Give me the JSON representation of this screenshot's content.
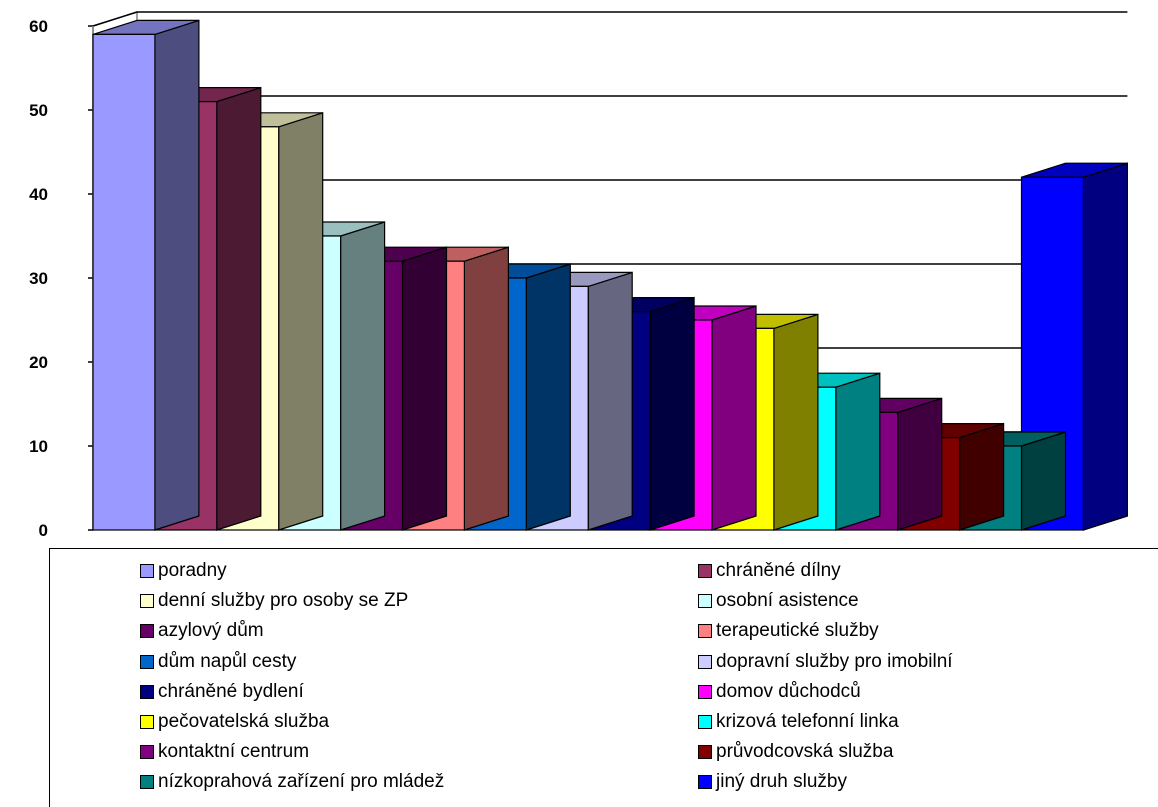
{
  "chart_data": {
    "type": "bar",
    "title": "",
    "xlabel": "",
    "ylabel": "",
    "ylim": [
      0,
      60
    ],
    "yticks": [
      "0",
      "10",
      "20",
      "30",
      "40",
      "50",
      "60"
    ],
    "grid": true,
    "legend_position": "bottom",
    "three_d": true,
    "categories": [
      "poradny",
      "chráněné dílny",
      "denní služby pro osoby se ZP",
      "osobní asistence",
      "azylový dům",
      "terapeutické služby",
      "dům napůl cesty",
      "dopravní služby pro imobilní",
      "chráněné bydlení",
      "domov důchodců",
      "pečovatelská služba",
      "krizová telefonní linka",
      "kontaktní centrum",
      "průvodcovská služba",
      "nízkoprahová zařízení pro mládež",
      "jiný druh služby"
    ],
    "values": [
      59,
      51,
      48,
      35,
      32,
      32,
      30,
      29,
      26,
      25,
      24,
      17,
      14,
      11,
      10,
      42
    ],
    "colors": [
      "#9999ff",
      "#993366",
      "#ffffcc",
      "#ccffff",
      "#660066",
      "#ff8080",
      "#0066cc",
      "#ccccff",
      "#000080",
      "#ff00ff",
      "#ffff00",
      "#00ffff",
      "#800080",
      "#800000",
      "#008080",
      "#0000ff"
    ]
  }
}
